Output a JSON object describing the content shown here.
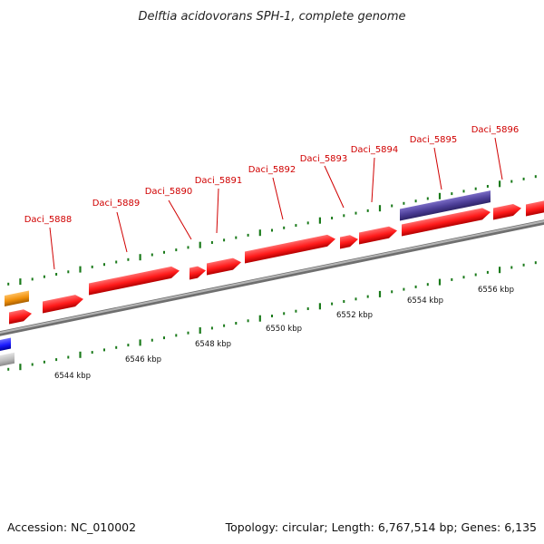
{
  "title": "Delftia acidovorans SPH-1, complete genome",
  "footer": {
    "accession": "Accession: NC_010002",
    "summary": "Topology: circular; Length: 6,767,514 bp; Genes: 6,135"
  },
  "genes": [
    {
      "label": "Daci_5888"
    },
    {
      "label": "Daci_5889"
    },
    {
      "label": "Daci_5890"
    },
    {
      "label": "Daci_5891"
    },
    {
      "label": "Daci_5892"
    },
    {
      "label": "Daci_5893"
    },
    {
      "label": "Daci_5894"
    },
    {
      "label": "Daci_5895"
    },
    {
      "label": "Daci_5896"
    }
  ],
  "scale_labels": [
    "6544 kbp",
    "6546 kbp",
    "6548 kbp",
    "6550 kbp",
    "6552 kbp",
    "6554 kbp",
    "6556 kbp"
  ],
  "colors": {
    "gene": "#ff1a1a",
    "gene_dark": "#b30000",
    "label": "#d00000",
    "tick": "#1a7a1a",
    "backbone": "#8c8c8c",
    "rna": "#4b3d96",
    "orange_feature": "#f0900a",
    "blue_feature": "#1a1aff",
    "grey_feature": "#bbbbbb"
  }
}
